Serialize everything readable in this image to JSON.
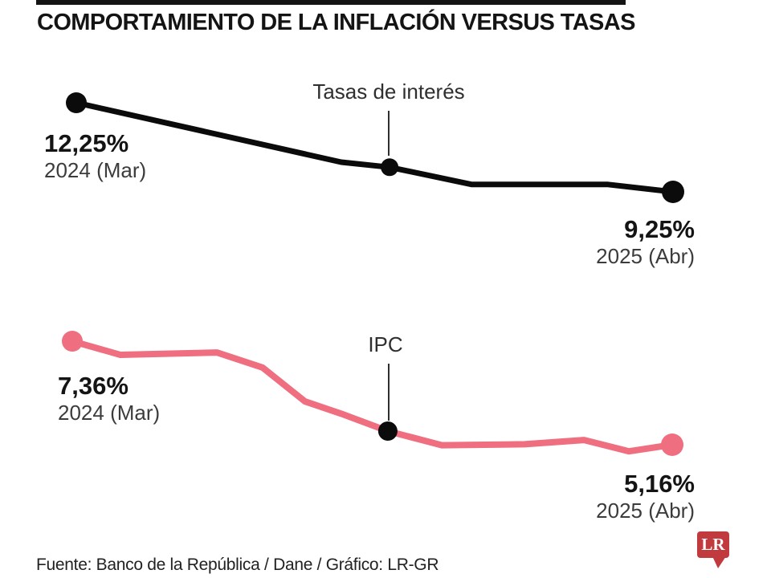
{
  "title": "COMPORTAMIENTO DE LA INFLACIÓN VERSUS TASAS",
  "footer": {
    "source": "Fuente: Banco de la República / Dane / Gráfico: LR-GR"
  },
  "logo": {
    "text": "LR",
    "bg_color": "#c13a3e",
    "text_color": "#ffffff"
  },
  "colors": {
    "pointer": "#2f2f2f",
    "black_line": "#0b0b0b",
    "pink_line": "#ef6e7f"
  },
  "chart_data": [
    {
      "type": "line",
      "name": "Tasas de interés",
      "unit": "%",
      "color": "#0b0b0b",
      "start_value": 12.25,
      "end_value": 9.25,
      "start_value_label": "12,25%",
      "start_date": "2024 (Mar)",
      "end_value_label": "9,25%",
      "end_date": "2025 (Abr)",
      "points_note": "x is 0-1 fraction of time axis (Mar 2024 - Abr 2025); values in %; intermediate values estimated from line position",
      "points": [
        [
          0.0,
          12.25
        ],
        [
          0.444,
          10.25
        ],
        [
          0.525,
          10.08
        ],
        [
          0.663,
          9.5
        ],
        [
          0.891,
          9.5
        ],
        [
          1.0,
          9.25
        ]
      ],
      "markers": [
        {
          "i": 0,
          "r": 13,
          "color": "#0b0b0b"
        },
        {
          "i": 2,
          "r": 11,
          "color": "#0b0b0b"
        },
        {
          "i": 5,
          "r": 14,
          "color": "#0b0b0b"
        }
      ]
    },
    {
      "type": "line",
      "name": "IPC",
      "unit": "%",
      "color": "#ef6e7f",
      "start_value": 7.36,
      "end_value": 5.16,
      "start_value_label": "7,36%",
      "start_date": "2024 (Mar)",
      "end_value_label": "5,16%",
      "end_date": "2025 (Abr)",
      "points_note": "x is 0-1 fraction of time axis (Mar 2024 - Abr 2025); values in %; intermediate values estimated from line position",
      "points": [
        [
          0.0,
          7.36
        ],
        [
          0.08,
          7.07
        ],
        [
          0.241,
          7.12
        ],
        [
          0.317,
          6.8
        ],
        [
          0.388,
          6.08
        ],
        [
          0.448,
          5.82
        ],
        [
          0.526,
          5.45
        ],
        [
          0.616,
          5.15
        ],
        [
          0.754,
          5.17
        ],
        [
          0.853,
          5.26
        ],
        [
          0.928,
          5.02
        ],
        [
          1.0,
          5.16
        ]
      ],
      "markers": [
        {
          "i": 0,
          "r": 13,
          "color": "#ef6e7f"
        },
        {
          "i": 6,
          "r": 12,
          "color": "#0b0b0b"
        },
        {
          "i": 11,
          "r": 14,
          "color": "#ef6e7f"
        }
      ]
    }
  ]
}
